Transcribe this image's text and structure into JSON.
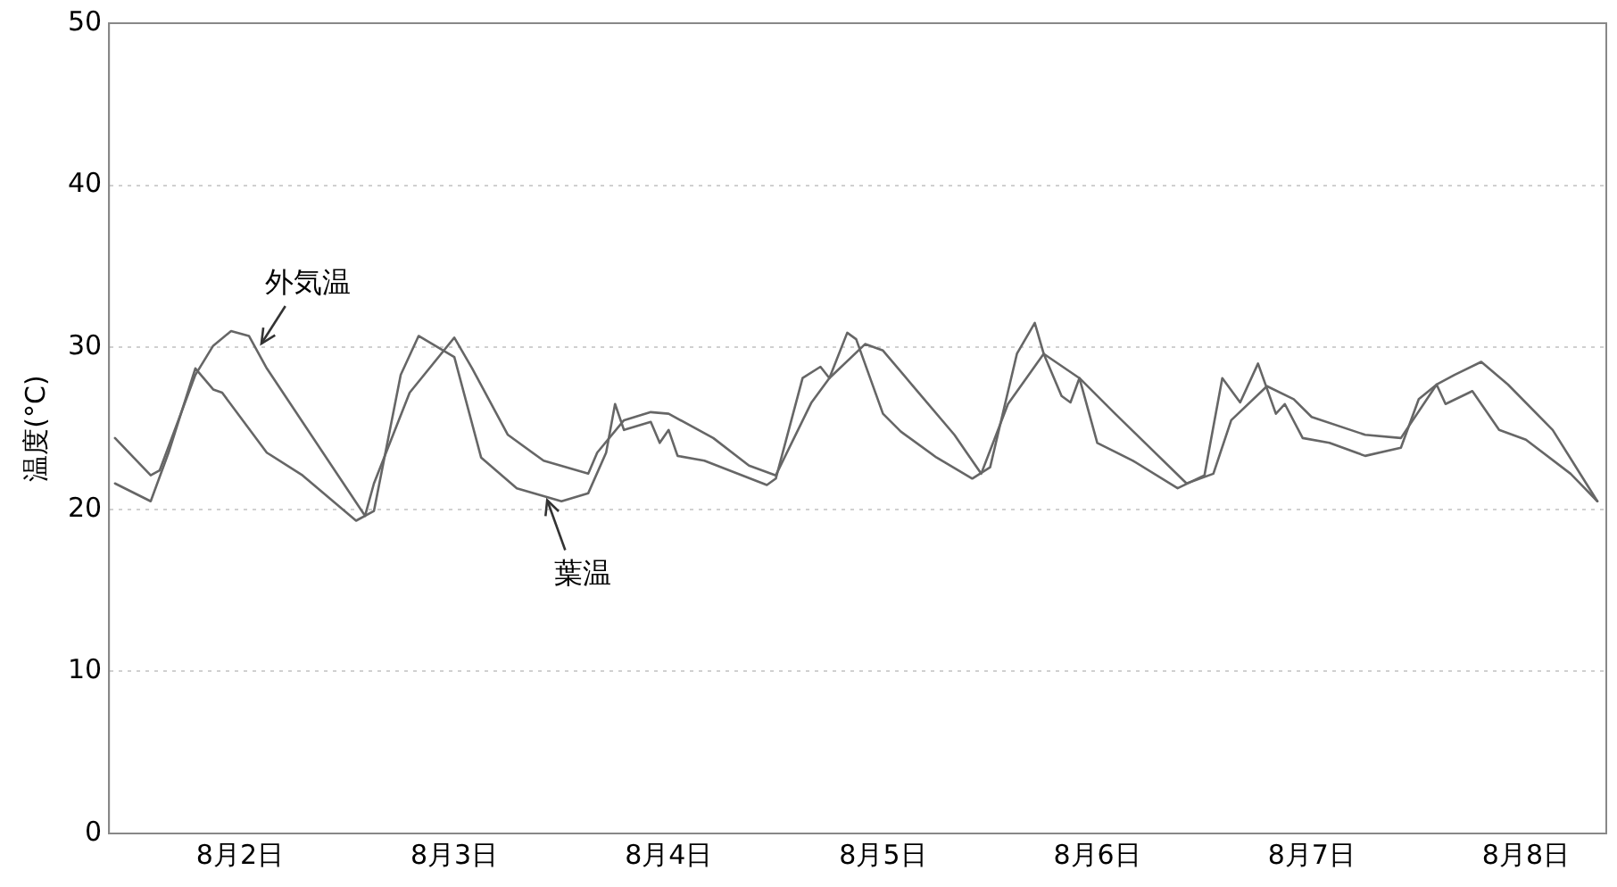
{
  "chart_data": {
    "type": "line",
    "ylabel": "温度(°C)",
    "xlim": [
      "--08-01T09:20",
      "--08-08T09:00"
    ],
    "xticks": [
      {
        "value": "--08-02",
        "label": "8月2日"
      },
      {
        "value": "--08-03",
        "label": "8月3日"
      },
      {
        "value": "--08-04",
        "label": "8月4日"
      },
      {
        "value": "--08-05",
        "label": "8月5日"
      },
      {
        "value": "--08-06",
        "label": "8月6日"
      },
      {
        "value": "--08-07",
        "label": "8月7日"
      },
      {
        "value": "--08-08",
        "label": "8月8日"
      }
    ],
    "ylim": [
      0,
      50
    ],
    "yticks": [
      0,
      10,
      20,
      30,
      40,
      50
    ],
    "grid": "y",
    "legend": false,
    "marker": "none",
    "line_style": "solid",
    "series": [
      {
        "color": "#666666",
        "x": [
          "--08-01T10:00",
          "--08-01T14:00",
          "--08-01T15:00",
          "--08-01T19:00",
          "--08-01T21:00",
          "--08-01T23:00",
          "--08-02T01:00",
          "--08-02T03:00",
          "--08-02T14:00",
          "--08-02T15:00",
          "--08-02T19:00",
          "--08-03T00:00",
          "--08-03T02:00",
          "--08-03T06:00",
          "--08-03T10:00",
          "--08-03T15:00",
          "--08-03T16:00",
          "--08-03T19:00",
          "--08-03T22:00",
          "--08-04T00:00",
          "--08-04T05:00",
          "--08-04T09:00",
          "--08-04T12:00",
          "--08-04T16:00",
          "--08-04T18:00",
          "--08-04T22:00",
          "--08-05T00:00",
          "--08-05T04:00",
          "--08-05T08:00",
          "--08-05T11:00",
          "--08-05T14:00",
          "--08-05T18:00",
          "--08-05T22:00",
          "--08-06T02:00",
          "--08-06T10:00",
          "--08-06T13:00",
          "--08-06T15:00",
          "--08-06T19:00",
          "--08-06T22:00",
          "--08-07T00:00",
          "--08-07T06:00",
          "--08-07T10:00",
          "--08-07T14:00",
          "--08-07T16:00",
          "--08-07T19:00",
          "--08-07T22:00",
          "--08-08T03:00",
          "--08-08T08:00"
        ],
        "values": [
          24.4,
          22.1,
          22.4,
          28.3,
          30.1,
          31.0,
          30.7,
          28.7,
          19.6,
          21.6,
          27.2,
          30.6,
          28.7,
          24.6,
          23.0,
          22.2,
          23.5,
          25.5,
          26.0,
          25.9,
          24.4,
          22.7,
          22.1,
          26.6,
          28.1,
          30.2,
          29.8,
          27.2,
          24.6,
          22.2,
          26.5,
          29.6,
          28.1,
          25.9,
          21.6,
          22.2,
          25.5,
          27.6,
          26.8,
          25.7,
          24.6,
          24.4,
          27.7,
          28.3,
          29.1,
          27.7,
          24.9,
          20.5
        ]
      },
      {
        "color": "#666666",
        "x": [
          "--08-01T10:00",
          "--08-01T14:00",
          "--08-01T16:00",
          "--08-01T19:00",
          "--08-01T21:00",
          "--08-01T22:00",
          "--08-02T03:00",
          "--08-02T07:00",
          "--08-02T13:00",
          "--08-02T15:00",
          "--08-02T18:00",
          "--08-02T20:00",
          "--08-03T00:00",
          "--08-03T03:00",
          "--08-03T07:00",
          "--08-03T12:00",
          "--08-03T15:00",
          "--08-03T17:00",
          "--08-03T18:00",
          "--08-03T19:00",
          "--08-03T22:00",
          "--08-03T23:00",
          "--08-04T00:00",
          "--08-04T01:00",
          "--08-04T04:00",
          "--08-04T11:00",
          "--08-04T12:00",
          "--08-04T15:00",
          "--08-04T17:00",
          "--08-04T18:00",
          "--08-04T20:00",
          "--08-04T21:00",
          "--08-05T00:00",
          "--08-05T02:00",
          "--08-05T06:00",
          "--08-05T10:00",
          "--08-05T12:00",
          "--08-05T15:00",
          "--08-05T17:00",
          "--08-05T18:00",
          "--08-05T20:00",
          "--08-05T21:00",
          "--08-05T22:00",
          "--08-06T00:00",
          "--08-06T04:00",
          "--08-06T09:00",
          "--08-06T12:00",
          "--08-06T14:00",
          "--08-06T16:00",
          "--08-06T18:00",
          "--08-06T20:00",
          "--08-06T21:00",
          "--08-06T23:00",
          "--08-07T02:00",
          "--08-07T06:00",
          "--08-07T10:00",
          "--08-07T12:00",
          "--08-07T14:00",
          "--08-07T15:00",
          "--08-07T18:00",
          "--08-07T21:00",
          "--08-08T00:00",
          "--08-08T05:00",
          "--08-08T08:00"
        ],
        "values": [
          21.6,
          20.5,
          23.5,
          28.7,
          27.4,
          27.2,
          23.5,
          22.1,
          19.3,
          19.9,
          28.3,
          30.7,
          29.4,
          23.2,
          21.3,
          20.5,
          21.0,
          23.5,
          26.5,
          24.9,
          25.4,
          24.1,
          24.9,
          23.3,
          23.0,
          21.5,
          21.9,
          28.1,
          28.8,
          28.1,
          30.9,
          30.5,
          25.9,
          24.8,
          23.2,
          21.9,
          22.6,
          29.6,
          31.5,
          29.6,
          27.0,
          26.6,
          28.1,
          24.1,
          23.0,
          21.3,
          22.1,
          28.1,
          26.6,
          29.0,
          25.9,
          26.5,
          24.4,
          24.1,
          23.3,
          23.8,
          26.8,
          27.7,
          26.5,
          27.3,
          24.9,
          24.3,
          22.2,
          20.5
        ]
      }
    ],
    "annotations": [
      {
        "text": "外気温",
        "x": "--08-02T02:00",
        "y": 29.9
      },
      {
        "text": "葉温",
        "x": "--08-03T10:00",
        "y": 20.9
      }
    ]
  }
}
